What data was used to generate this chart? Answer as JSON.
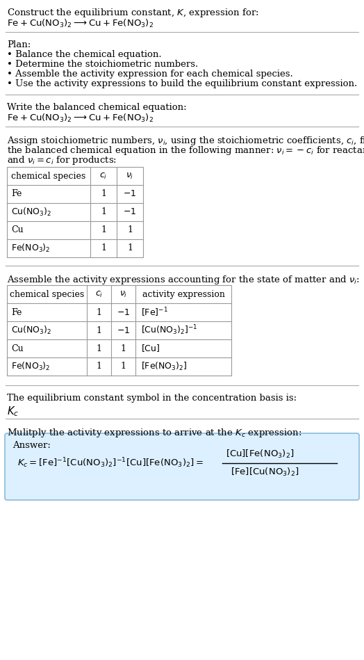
{
  "bg_color": "#ffffff",
  "text_color": "#000000",
  "title_line1": "Construct the equilibrium constant, $K$, expression for:",
  "plan_items": [
    "• Balance the chemical equation.",
    "• Determine the stoichiometric numbers.",
    "• Assemble the activity expression for each chemical species.",
    "• Use the activity expressions to build the equilibrium constant expression."
  ],
  "answer_box_color": "#ddf0ff",
  "answer_box_border": "#88bbdd",
  "fig_width": 5.24,
  "fig_height": 9.49,
  "dpi": 100
}
